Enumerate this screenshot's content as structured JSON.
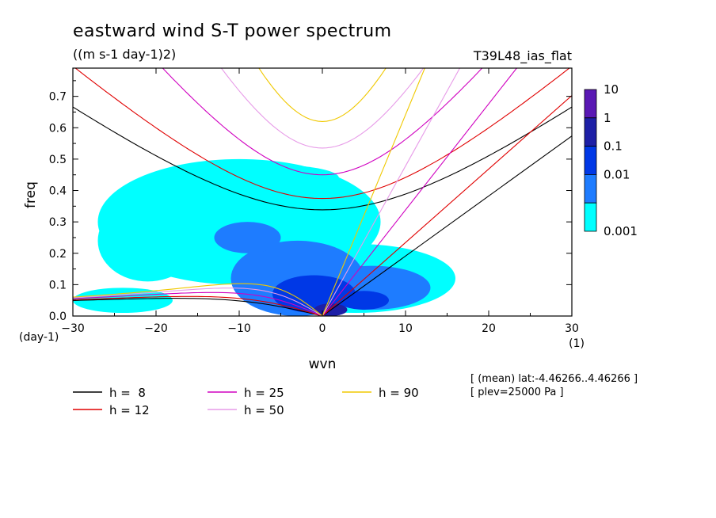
{
  "chart_data": {
    "type": "heatmap",
    "title": "eastward wind S-T power spectrum",
    "units": "((m s-1 day-1)2)",
    "run_label": "T39L48_ias_flat",
    "xlabel": "wvn",
    "ylabel": "freq",
    "x_unit": "(1)",
    "y_unit": "(day-1)",
    "xlim": [
      -30,
      30
    ],
    "ylim": [
      0,
      0.79
    ],
    "xticks": [
      -30,
      -20,
      -10,
      0,
      10,
      20,
      30
    ],
    "xtick_labels": [
      "−30",
      "−20",
      "−10",
      "0",
      "10",
      "20",
      "30"
    ],
    "yticks": [
      0,
      0.1,
      0.2,
      0.3,
      0.4,
      0.5,
      0.6,
      0.7
    ],
    "ytick_labels": [
      "0.0",
      "0.1",
      "0.2",
      "0.3",
      "0.4",
      "0.5",
      "0.6",
      "0.7"
    ],
    "notes": [
      "[ (mean) lat:-4.46266..4.46266 ]",
      "[ plev=25000 Pa ]"
    ],
    "colorbar": {
      "levels": [
        "10",
        "1",
        "0.1",
        "0.01",
        "0.001"
      ],
      "colors": [
        "#5a18b4",
        "#1d1fa6",
        "#0038e6",
        "#1e7cff",
        "#00ffff"
      ]
    },
    "power_blobs": [
      {
        "x": -10,
        "y": 0.3,
        "rx": 17,
        "ry": 0.2,
        "level": 0
      },
      {
        "x": -5,
        "y": 0.44,
        "rx": 7,
        "ry": 0.04,
        "level": 0
      },
      {
        "x": -21,
        "y": 0.24,
        "rx": 6,
        "ry": 0.13,
        "level": 0
      },
      {
        "x": 4,
        "y": 0.12,
        "rx": 12,
        "ry": 0.11,
        "level": 0
      },
      {
        "x": -24,
        "y": 0.05,
        "rx": 6,
        "ry": 0.04,
        "level": 0
      },
      {
        "x": -3,
        "y": 0.12,
        "rx": 8,
        "ry": 0.12,
        "level": 1
      },
      {
        "x": 6,
        "y": 0.09,
        "rx": 7,
        "ry": 0.07,
        "level": 1
      },
      {
        "x": -9,
        "y": 0.25,
        "rx": 4,
        "ry": 0.05,
        "level": 1
      },
      {
        "x": -1,
        "y": 0.07,
        "rx": 5,
        "ry": 0.06,
        "level": 2
      },
      {
        "x": 5,
        "y": 0.05,
        "rx": 3,
        "ry": 0.03,
        "level": 2
      },
      {
        "x": 1,
        "y": 0.02,
        "rx": 2,
        "ry": 0.02,
        "level": 3
      }
    ],
    "dispersion_curves": [
      {
        "name": "h =  8",
        "color": "#000000",
        "kelvin_speed": 8.86
      },
      {
        "name": "h = 12",
        "color": "#e00000",
        "kelvin_speed": 10.85
      },
      {
        "name": "h = 25",
        "color": "#d000c0",
        "kelvin_speed": 15.66
      },
      {
        "name": "h = 50",
        "color": "#e79be8",
        "kelvin_speed": 22.15
      },
      {
        "name": "h = 90",
        "color": "#f0c800",
        "kelvin_speed": 29.71
      }
    ],
    "legend_entries": [
      {
        "label": "h =  8",
        "color": "#000000"
      },
      {
        "label": "h = 12",
        "color": "#e00000"
      },
      {
        "label": "h = 25",
        "color": "#d000c0"
      },
      {
        "label": "h = 50",
        "color": "#e79be8"
      },
      {
        "label": "h = 90",
        "color": "#f0c800"
      }
    ]
  }
}
